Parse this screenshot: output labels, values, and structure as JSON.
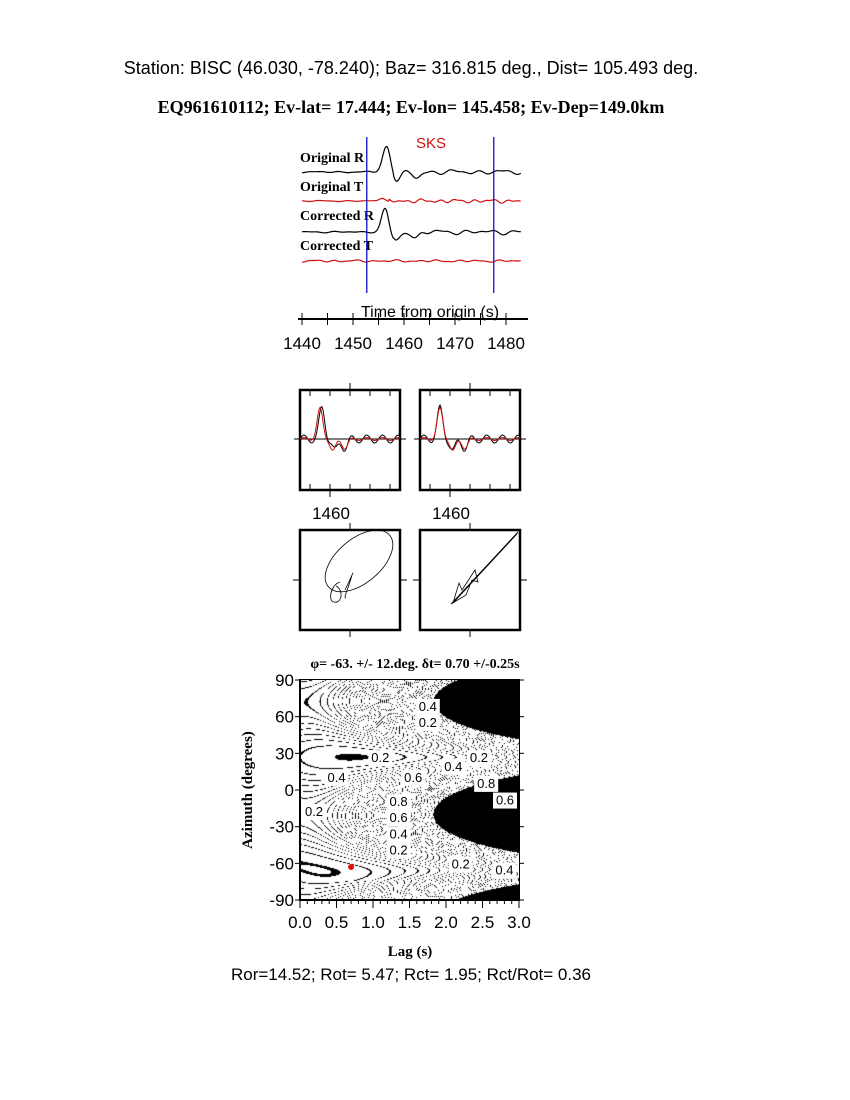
{
  "header": {
    "station_line": "Station: BISC (46.030,  -78.240); Baz=  316.815 deg., Dist=  105.493 deg.",
    "event_line": "EQ961610112; Ev-lat=  17.444; Ev-lon= 145.458; Ev-Dep=149.0km"
  },
  "colors": {
    "trace_r": "#000000",
    "trace_t": "#d01010",
    "window_line": "#1010c0",
    "phase_label": "#d01010",
    "best_fit_marker": "#e01010"
  },
  "chart_data": [
    {
      "type": "line",
      "title": "",
      "phase_label": "SKS",
      "xlabel": "Time from origin (s)",
      "xlim": [
        1440,
        1484
      ],
      "xticks": [
        "1440",
        "1450",
        "1460",
        "1470",
        "1480"
      ],
      "window_start_s": 1452.7,
      "window_end_s": 1477.6,
      "series": [
        {
          "name": "Original R"
        },
        {
          "name": "Original T"
        },
        {
          "name": "Corrected R"
        },
        {
          "name": "Corrected T"
        }
      ]
    },
    {
      "type": "line",
      "panel": "waveform-overlay-original",
      "xticks": [
        "1460"
      ]
    },
    {
      "type": "line",
      "panel": "waveform-overlay-corrected",
      "xticks": [
        "1460"
      ]
    },
    {
      "type": "scatter",
      "panel": "particle-motion-original"
    },
    {
      "type": "scatter",
      "panel": "particle-motion-corrected"
    },
    {
      "type": "heatmap",
      "title": "φ= -63. +/- 12.deg. δt= 0.70 +/-0.25s",
      "xlabel": "Lag (s)",
      "ylabel": "Azimuth (degrees)",
      "xlim": [
        0.0,
        3.0
      ],
      "ylim": [
        -90,
        90
      ],
      "xticks": [
        "0.0",
        "0.5",
        "1.0",
        "1.5",
        "2.0",
        "2.5",
        "3.0"
      ],
      "yticks": [
        "90",
        "60",
        "30",
        "0",
        "-30",
        "-60",
        "-90"
      ],
      "best_fit": {
        "lag_s": 0.7,
        "azimuth_deg": -63
      },
      "contour_labels": [
        {
          "text": "0.4",
          "lag": 1.6,
          "az": 68
        },
        {
          "text": "0.2",
          "lag": 1.6,
          "az": 59
        },
        {
          "text": "0.2",
          "lag": 0.95,
          "az": 26
        },
        {
          "text": "0.2",
          "lag": 2.3,
          "az": 26
        },
        {
          "text": "0.4",
          "lag": 1.95,
          "az": 19
        },
        {
          "text": "0.6",
          "lag": 1.4,
          "az": 10
        },
        {
          "text": "0.8",
          "lag": 2.4,
          "az": 5
        },
        {
          "text": "0.6",
          "lag": 2.9,
          "az": 11
        },
        {
          "text": "0.4",
          "lag": 0.35,
          "az": 10
        },
        {
          "text": "0.2",
          "lag": -0.05,
          "az": -18
        },
        {
          "text": "0.8",
          "lag": 1.2,
          "az": -10
        },
        {
          "text": "0.6",
          "lag": 1.2,
          "az": -19
        },
        {
          "text": "0.4",
          "lag": 1.2,
          "az": -25
        },
        {
          "text": "0.2",
          "lag": 1.2,
          "az": -34
        },
        {
          "text": "0.2",
          "lag": 2.05,
          "az": -61
        },
        {
          "text": "0.4",
          "lag": 2.65,
          "az": -66
        }
      ]
    }
  ],
  "footer": {
    "stats": "Ror=14.52; Rot= 5.47; Rct= 1.95; Rct/Rot= 0.36"
  }
}
